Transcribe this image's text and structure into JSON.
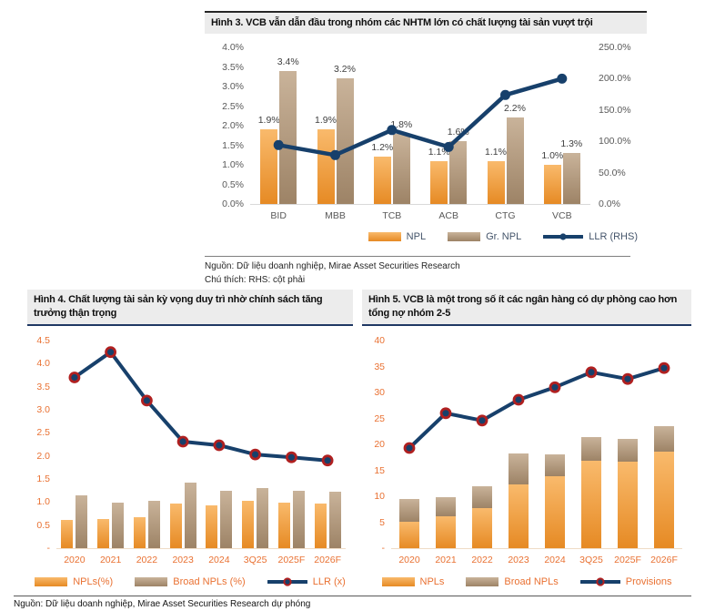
{
  "chart_data": [
    {
      "id": "fig3",
      "type": "bar",
      "subtype": "grouped-bars-with-line",
      "title": "Hình 3. VCB vẫn dẫn đầu trong nhóm các NHTM lớn có chất lượng tài sản vượt trội",
      "categories": [
        "BID",
        "MBB",
        "TCB",
        "ACB",
        "CTG",
        "VCB"
      ],
      "stacked": false,
      "series": [
        {
          "name": "NPL",
          "type": "bar",
          "values": [
            1.9,
            1.9,
            1.2,
            1.1,
            1.1,
            1.0
          ],
          "labels": [
            "1.9%",
            "1.9%",
            "1.2%",
            "1.1%",
            "1.1%",
            "1.0%"
          ],
          "color_top": "#f9ba6c",
          "color_bottom": "#e68a24"
        },
        {
          "name": "Gr. NPL",
          "type": "bar",
          "values": [
            3.4,
            3.2,
            1.8,
            1.6,
            2.2,
            1.3
          ],
          "labels": [
            "3.4%",
            "3.2%",
            "1.8%",
            "1.6%",
            "2.2%",
            "1.3%"
          ],
          "color_top": "#c9b39a",
          "color_bottom": "#9d8366"
        },
        {
          "name": "LLR (RHS)",
          "type": "line",
          "axis": "right",
          "values": [
            94,
            78,
            118,
            91,
            174,
            200
          ],
          "color": "#17406b",
          "marker": {
            "r": 5.5,
            "fill": "#17406b",
            "stroke": "#17406b",
            "stroke_width": 0
          }
        }
      ],
      "left_axis": {
        "min": 0,
        "max": 4,
        "step": 0.5,
        "tick_labels": [
          "0.0%",
          "0.5%",
          "1.0%",
          "1.5%",
          "2.0%",
          "2.5%",
          "3.0%",
          "3.5%",
          "4.0%"
        ]
      },
      "right_axis": {
        "min": 0,
        "max": 250,
        "step": 50,
        "tick_labels": [
          "0.0%",
          "50.0%",
          "100.0%",
          "150.0%",
          "200.0%",
          "250.0%"
        ]
      },
      "style": {
        "tick_color": "#595959",
        "category_color": "#595959",
        "bar_label_color": "#404040",
        "legend_text_color": "#44546a",
        "baseline_color": "#d9d9d9"
      }
    },
    {
      "id": "fig4",
      "type": "bar",
      "subtype": "grouped-bars-with-line",
      "title": "Hình 4. Chất lượng tài sản kỳ vọng duy trì nhờ chính sách tăng trưởng thận trọng",
      "categories": [
        "2020",
        "2021",
        "2022",
        "2023",
        "2024",
        "3Q25",
        "2025F",
        "2026F"
      ],
      "stacked": false,
      "series": [
        {
          "name": "NPLs(%)",
          "type": "bar",
          "values": [
            0.62,
            0.63,
            0.68,
            0.97,
            0.93,
            1.03,
            0.98,
            0.97
          ],
          "color_top": "#f9ba6c",
          "color_bottom": "#e68a24"
        },
        {
          "name": "Broad NPLs (%)",
          "type": "bar",
          "values": [
            1.15,
            0.99,
            1.02,
            1.42,
            1.25,
            1.31,
            1.25,
            1.23
          ],
          "color_top": "#c9b39a",
          "color_bottom": "#9d8366"
        },
        {
          "name": "LLR (x)",
          "type": "line",
          "axis": "left",
          "values": [
            3.7,
            4.25,
            3.2,
            2.31,
            2.23,
            2.03,
            1.97,
            1.9
          ],
          "color": "#17406b",
          "marker": {
            "r": 5,
            "fill": "#17406b",
            "stroke": "#b02020",
            "stroke_width": 2.8
          }
        }
      ],
      "left_axis": {
        "min": 0,
        "max": 4.5,
        "step": 0.5,
        "tick_labels": [
          "-",
          "0.5",
          "1.0",
          "1.5",
          "2.0",
          "2.5",
          "3.0",
          "3.5",
          "4.0",
          "4.5"
        ]
      },
      "right_axis": null,
      "style": {
        "tick_color": "#e97132",
        "category_color": "#e97132",
        "bar_label_color": "#404040",
        "legend_text_color": "#e97132",
        "baseline_color": "#efdcc6"
      }
    },
    {
      "id": "fig5",
      "type": "bar",
      "subtype": "stacked-bars-with-line",
      "title": "Hình 5. VCB là một trong số ít các ngân hàng có dự phòng cao hơn tổng nợ nhóm 2-5",
      "categories": [
        "2020",
        "2021",
        "2022",
        "2023",
        "2024",
        "3Q25",
        "2025F",
        "2026F"
      ],
      "stacked": true,
      "series": [
        {
          "name": "NPLs",
          "type": "bar",
          "values": [
            5.1,
            6.1,
            7.7,
            12.3,
            13.9,
            16.8,
            16.7,
            18.6
          ],
          "color_top": "#f9ba6c",
          "color_bottom": "#e68a24"
        },
        {
          "name": "Broad NPLs",
          "type": "bar",
          "values": [
            4.4,
            3.7,
            4.2,
            5.9,
            4.2,
            4.6,
            4.4,
            4.9
          ],
          "color_top": "#c9b39a",
          "color_bottom": "#9d8366"
        },
        {
          "name": "Provisions",
          "type": "line",
          "axis": "left",
          "values": [
            19.3,
            26.0,
            24.6,
            28.6,
            31.0,
            33.9,
            32.6,
            34.7
          ],
          "color": "#17406b",
          "marker": {
            "r": 5,
            "fill": "#17406b",
            "stroke": "#b02020",
            "stroke_width": 2.8
          }
        }
      ],
      "left_axis": {
        "min": 0,
        "max": 40,
        "step": 5,
        "tick_labels": [
          "-",
          "5",
          "10",
          "15",
          "20",
          "25",
          "30",
          "35",
          "40"
        ]
      },
      "right_axis": null,
      "style": {
        "tick_color": "#e97132",
        "category_color": "#e97132",
        "bar_label_color": "#404040",
        "legend_text_color": "#e97132",
        "baseline_color": "#efdcc6"
      }
    }
  ],
  "notes": {
    "fig3_source": "Nguồn: Dữ liệu doanh nghiệp, Mirae Asset Securities Research",
    "fig3_note": "Chú thích: RHS: cột phải",
    "footer_source": "Nguồn: Dữ liệu doanh nghiệp, Mirae Asset Securities Research dự phóng"
  }
}
